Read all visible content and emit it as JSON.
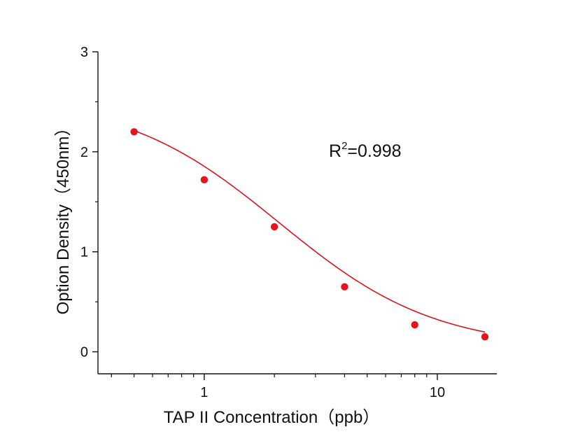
{
  "chart_data": {
    "type": "scatter",
    "title": "",
    "xlabel": "TAP II Concentration（ppb）",
    "ylabel": "Option Density（450nm）",
    "xscale": "log",
    "xlim": [
      0.35,
      18
    ],
    "ylim": [
      -0.22,
      3
    ],
    "x_ticks": [
      1,
      10
    ],
    "x_tick_labels": [
      "1",
      "10"
    ],
    "y_ticks": [
      0,
      1,
      2,
      3
    ],
    "y_tick_labels": [
      "0",
      "1",
      "2",
      "3"
    ],
    "grid": false,
    "legend": "none",
    "series": [
      {
        "x": [
          0.5,
          1,
          2,
          4,
          8,
          16
        ],
        "y": [
          2.2,
          1.72,
          1.25,
          0.65,
          0.27,
          0.15
        ],
        "color": "#e8141c"
      }
    ],
    "fit_curve": {
      "model": "4PL",
      "top": 2.55,
      "bottom": 0.03,
      "ec50": 2.1,
      "hill": 1.3,
      "color": "#d9141c"
    },
    "annotation": {
      "base": "R",
      "sup": "2",
      "rest": "=0.998"
    }
  }
}
